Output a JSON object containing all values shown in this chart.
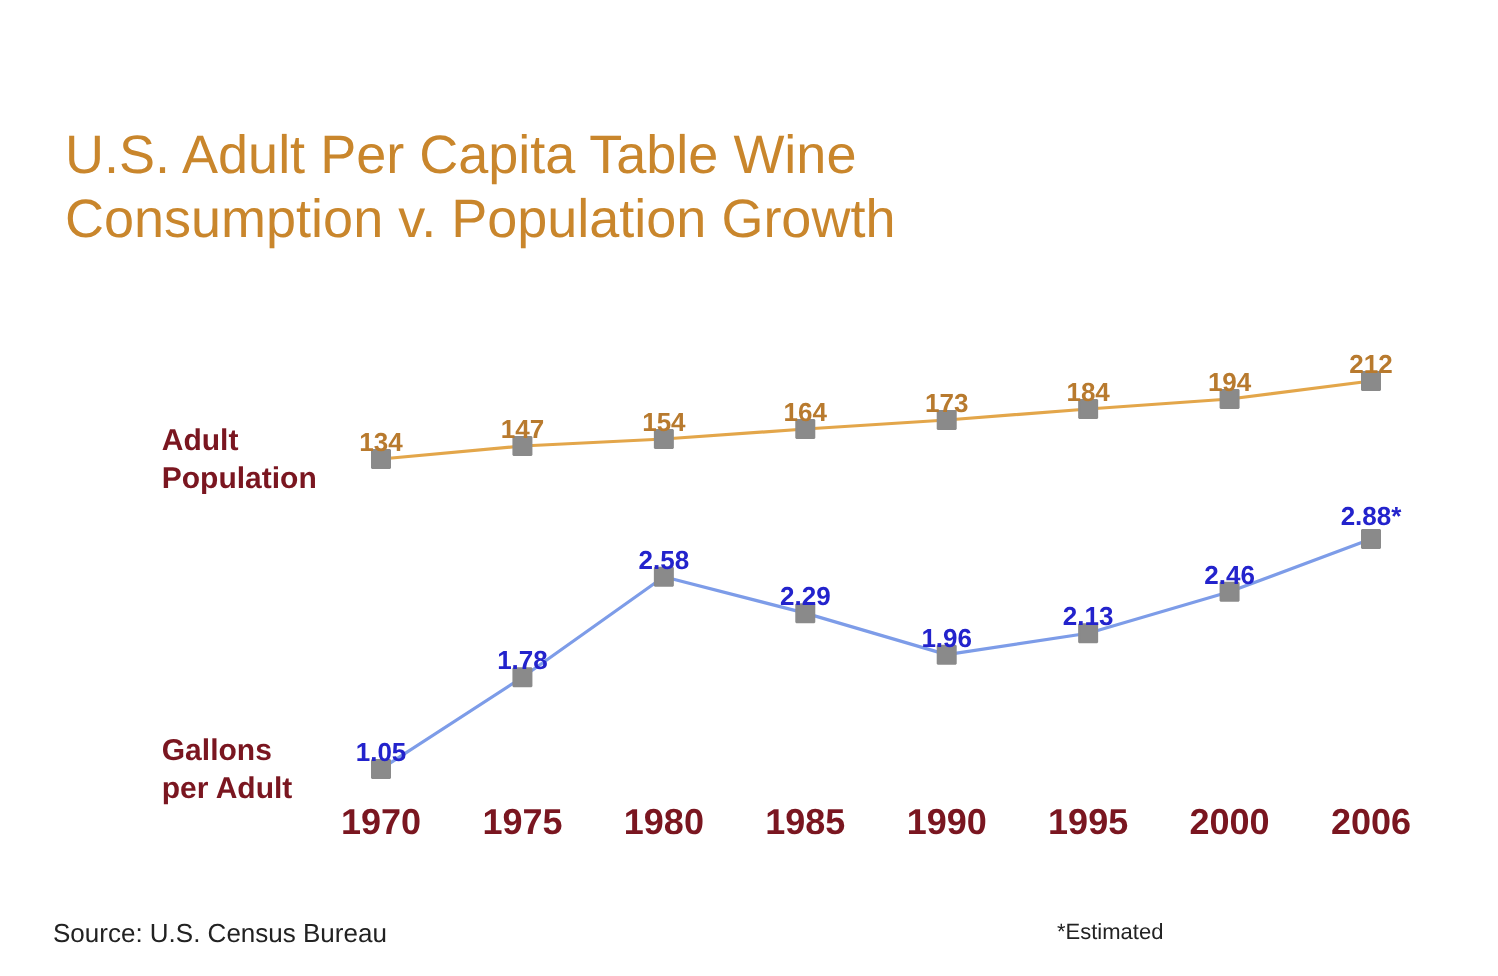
{
  "chart_data": [
    {
      "type": "line",
      "title": "U.S. Adult Per Capita Table Wine\nConsumption v. Population Growth",
      "categories": [
        "1970",
        "1975",
        "1980",
        "1985",
        "1990",
        "1995",
        "2000",
        "2006"
      ],
      "series": [
        {
          "name": "Adult Population",
          "color": "#e3a64a",
          "values": [
            134,
            147,
            154,
            164,
            173,
            184,
            194,
            212
          ],
          "value_labels": [
            "134",
            "147",
            "154",
            "164",
            "173",
            "184",
            "194",
            "212"
          ]
        }
      ],
      "tick_labels": false,
      "grid": false,
      "legend": false,
      "marker": "square",
      "line_style": "solid"
    },
    {
      "type": "line",
      "categories": [
        "1970",
        "1975",
        "1980",
        "1985",
        "1990",
        "1995",
        "2000",
        "2006"
      ],
      "series": [
        {
          "name": "Gallons per Adult",
          "color": "#7d9ce8",
          "values": [
            1.05,
            1.78,
            2.58,
            2.29,
            1.96,
            2.13,
            2.46,
            2.88
          ],
          "value_labels": [
            "1.05",
            "1.78",
            "2.58",
            "2.29",
            "1.96",
            "2.13",
            "2.46",
            "2.88*"
          ]
        }
      ],
      "tick_labels": "x",
      "grid": false,
      "legend": false,
      "marker": "square",
      "line_style": "solid",
      "annotations": [
        "Source: U.S. Census Bureau",
        "*Estimated"
      ]
    }
  ]
}
